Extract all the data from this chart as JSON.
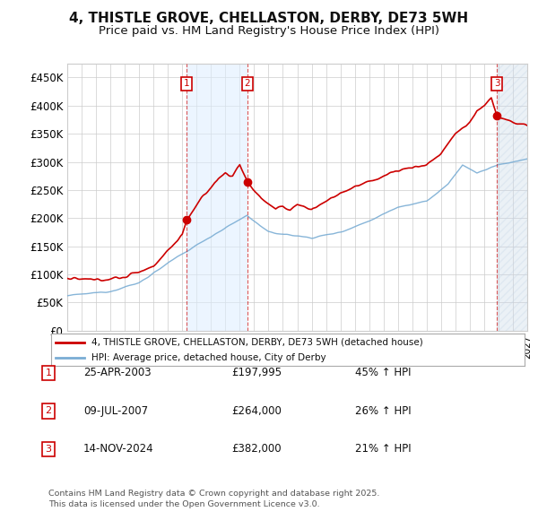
{
  "title": "4, THISTLE GROVE, CHELLASTON, DERBY, DE73 5WH",
  "subtitle": "Price paid vs. HM Land Registry's House Price Index (HPI)",
  "ylim": [
    0,
    475000
  ],
  "yticks": [
    0,
    50000,
    100000,
    150000,
    200000,
    250000,
    300000,
    350000,
    400000,
    450000
  ],
  "ytick_labels": [
    "£0",
    "£50K",
    "£100K",
    "£150K",
    "£200K",
    "£250K",
    "£300K",
    "£350K",
    "£400K",
    "£450K"
  ],
  "xlim_start": 1995.0,
  "xlim_end": 2027.0,
  "sale_color": "#cc0000",
  "hpi_color": "#7aadd4",
  "shade_color": "#ddeeff",
  "hatch_color": "#c8d8e8",
  "purchase_dates": [
    2003.32,
    2007.54,
    2024.88
  ],
  "purchase_prices": [
    197995,
    264000,
    382000
  ],
  "purchase_labels": [
    "1",
    "2",
    "3"
  ],
  "shade_region": [
    2003.32,
    2007.54
  ],
  "hatch_region": [
    2024.88,
    2027.0
  ],
  "legend_line1": "4, THISTLE GROVE, CHELLASTON, DERBY, DE73 5WH (detached house)",
  "legend_line2": "HPI: Average price, detached house, City of Derby",
  "table_data": [
    [
      "1",
      "25-APR-2003",
      "£197,995",
      "45% ↑ HPI"
    ],
    [
      "2",
      "09-JUL-2007",
      "£264,000",
      "26% ↑ HPI"
    ],
    [
      "3",
      "14-NOV-2024",
      "£382,000",
      "21% ↑ HPI"
    ]
  ],
  "footnote": "Contains HM Land Registry data © Crown copyright and database right 2025.\nThis data is licensed under the Open Government Licence v3.0.",
  "background_color": "#ffffff",
  "grid_color": "#cccccc",
  "title_fontsize": 11,
  "subtitle_fontsize": 9.5,
  "axis_fontsize": 8.5
}
